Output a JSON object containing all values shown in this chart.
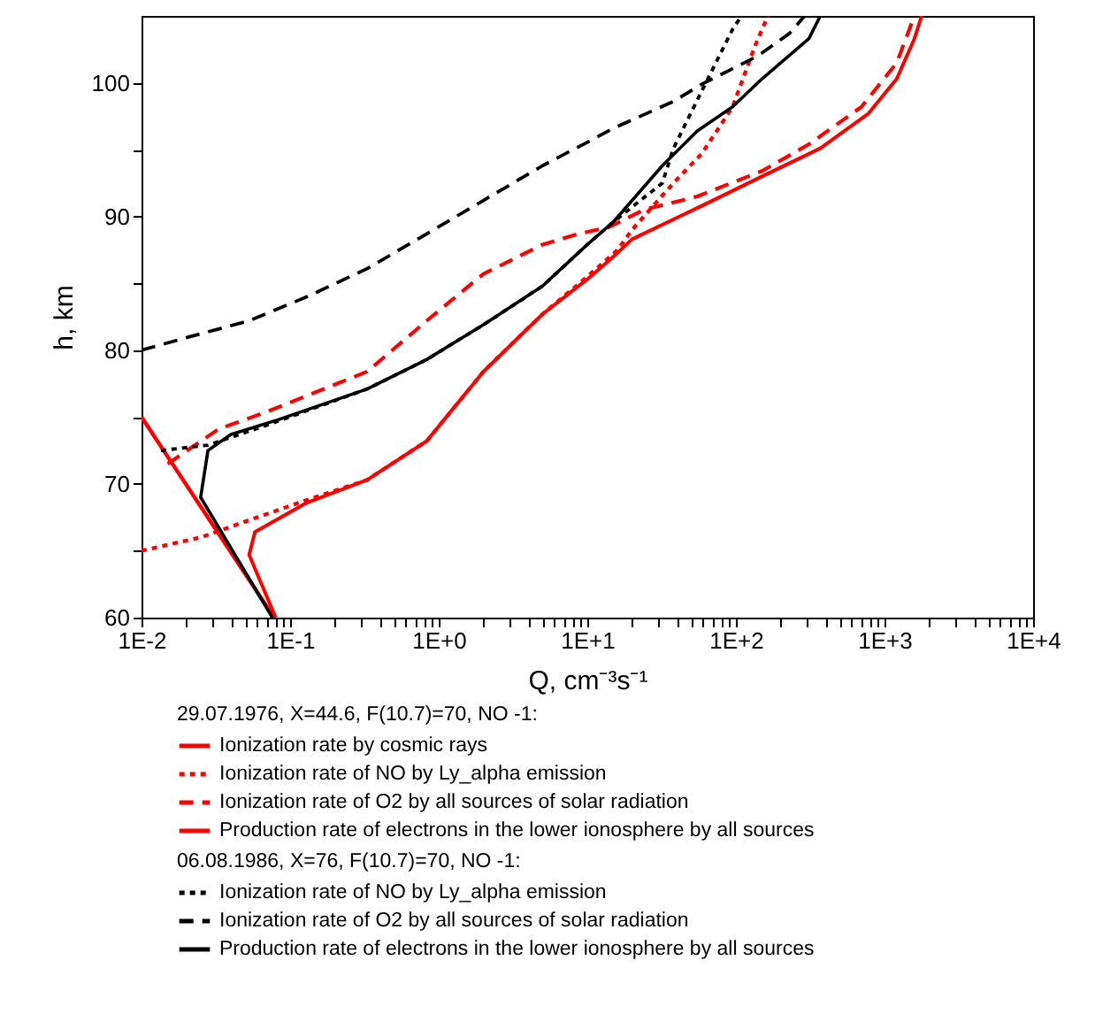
{
  "chart_data": {
    "type": "line",
    "xlabel": "Q, cm⁻³s⁻¹",
    "ylabel": "h, km",
    "log": "x",
    "grid": false,
    "legend": "bottom",
    "marker": "none",
    "xlim": [
      0.01,
      10000
    ],
    "ylim": [
      60,
      105
    ],
    "xticks": [
      {
        "value": 0.01,
        "label": "1E-2"
      },
      {
        "value": 0.02,
        "label": null
      },
      {
        "value": 0.03,
        "label": null
      },
      {
        "value": 0.04,
        "label": null
      },
      {
        "value": 0.05,
        "label": null
      },
      {
        "value": 0.06,
        "label": null
      },
      {
        "value": 0.07,
        "label": null
      },
      {
        "value": 0.08,
        "label": null
      },
      {
        "value": 0.09,
        "label": null
      },
      {
        "value": 0.1,
        "label": "1E-1"
      },
      {
        "value": 0.2,
        "label": null
      },
      {
        "value": 0.3,
        "label": null
      },
      {
        "value": 0.4,
        "label": null
      },
      {
        "value": 0.5,
        "label": null
      },
      {
        "value": 0.6,
        "label": null
      },
      {
        "value": 0.7,
        "label": null
      },
      {
        "value": 0.8,
        "label": null
      },
      {
        "value": 0.9,
        "label": null
      },
      {
        "value": 1,
        "label": "1E+0"
      },
      {
        "value": 2,
        "label": null
      },
      {
        "value": 3,
        "label": null
      },
      {
        "value": 4,
        "label": null
      },
      {
        "value": 5,
        "label": null
      },
      {
        "value": 6,
        "label": null
      },
      {
        "value": 7,
        "label": null
      },
      {
        "value": 8,
        "label": null
      },
      {
        "value": 9,
        "label": null
      },
      {
        "value": 10,
        "label": "1E+1"
      },
      {
        "value": 20,
        "label": null
      },
      {
        "value": 30,
        "label": null
      },
      {
        "value": 40,
        "label": null
      },
      {
        "value": 50,
        "label": null
      },
      {
        "value": 60,
        "label": null
      },
      {
        "value": 70,
        "label": null
      },
      {
        "value": 80,
        "label": null
      },
      {
        "value": 90,
        "label": null
      },
      {
        "value": 100,
        "label": "1E+2"
      },
      {
        "value": 200,
        "label": null
      },
      {
        "value": 300,
        "label": null
      },
      {
        "value": 400,
        "label": null
      },
      {
        "value": 500,
        "label": null
      },
      {
        "value": 600,
        "label": null
      },
      {
        "value": 700,
        "label": null
      },
      {
        "value": 800,
        "label": null
      },
      {
        "value": 900,
        "label": null
      },
      {
        "value": 1000,
        "label": "1E+3"
      },
      {
        "value": 2000,
        "label": null
      },
      {
        "value": 3000,
        "label": null
      },
      {
        "value": 4000,
        "label": null
      },
      {
        "value": 5000,
        "label": null
      },
      {
        "value": 6000,
        "label": null
      },
      {
        "value": 7000,
        "label": null
      },
      {
        "value": 8000,
        "label": null
      },
      {
        "value": 9000,
        "label": null
      },
      {
        "value": 10000,
        "label": "1E+4"
      }
    ],
    "yticks": [
      60,
      {
        "value": 65,
        "label": null
      },
      70,
      {
        "value": 75,
        "label": null
      },
      80,
      {
        "value": 85,
        "label": null
      },
      90,
      {
        "value": 95,
        "label": null
      },
      100
    ],
    "annotations": [
      "29.07.1976, X=44.6,  F(10.7)=70, NO -1:",
      "06.08.1986, X=76,  F(10.7)=70, NO -1:"
    ],
    "series": [
      {
        "name": "Ionization rate by cosmic rays",
        "color": "#ff0000",
        "line_style": "solid",
        "x": [
          0.01,
          0.078
        ],
        "values": [
          75,
          60
        ]
      },
      {
        "name": "Ionization rate of NO by Ly_alpha emission",
        "color": "#ff0000",
        "line_style": "dotted",
        "x": [
          0.01,
          0.025,
          0.06,
          0.13,
          0.33,
          0.83,
          2.0,
          5.0,
          10,
          16,
          20,
          38,
          59,
          95,
          135,
          164
        ],
        "values": [
          65,
          66,
          67.5,
          68.8,
          70.3,
          73.2,
          78.4,
          82.7,
          85.5,
          87.5,
          89,
          92.5,
          94.7,
          98.2,
          102.8,
          105
        ]
      },
      {
        "name": "Ionization rate of O2  by all sources of solar radiation",
        "color": "#ff0000",
        "line_style": "dashed",
        "x": [
          0.015,
          0.033,
          0.07,
          0.33,
          0.83,
          2.0,
          5.0,
          8.7,
          14,
          24,
          55,
          150,
          310,
          700,
          1210,
          1590
        ],
        "values": [
          71.5,
          74.1,
          75.4,
          78.4,
          82.2,
          85.7,
          87.9,
          88.7,
          89.2,
          90.5,
          91.5,
          93.4,
          95.4,
          98.2,
          101.5,
          105
        ]
      },
      {
        "name": "Production rate of electrons in the lower ionosphere by all sources",
        "color": "#ff0000",
        "line_style": "solid",
        "x": [
          0.08,
          0.053,
          0.058,
          0.13,
          0.33,
          0.83,
          2.0,
          5.0,
          10,
          15,
          20,
          59,
          150,
          370,
          780,
          1210,
          1590,
          1780
        ],
        "values": [
          60,
          64.7,
          66.4,
          68.6,
          70.3,
          73.2,
          78.4,
          82.7,
          85.3,
          87,
          88.3,
          90.8,
          93,
          95.1,
          97.7,
          100.3,
          103.3,
          105
        ]
      },
      {
        "name": "Ionization rate of NO by Ly_alpha emission",
        "color": "#000000",
        "line_style": "dotted",
        "x": [
          0.0135,
          0.028,
          0.07,
          0.33,
          0.83,
          2.0,
          5.0,
          10,
          15,
          32,
          38,
          59,
          95,
          109
        ],
        "values": [
          72.5,
          72.9,
          74.4,
          77.1,
          79.3,
          81.9,
          84.8,
          87.9,
          89.6,
          92.5,
          95.1,
          99.4,
          104,
          105
        ]
      },
      {
        "name": "Ionization rate of O2 by all sources of solar radiation",
        "color": "#000000",
        "line_style": "dashed",
        "x": [
          0.01,
          0.021,
          0.053,
          0.13,
          0.33,
          0.83,
          2.0,
          5.0,
          9.8,
          15,
          38,
          59,
          140,
          230,
          290
        ],
        "values": [
          80,
          81,
          82.2,
          84,
          86.1,
          88.7,
          91.2,
          93.8,
          95.5,
          96.6,
          98.6,
          99.9,
          102,
          103.7,
          105
        ]
      },
      {
        "name": "Production rate of electrons in the lower ionosphere by all sources",
        "color": "#000000",
        "line_style": "solid",
        "x": [
          0.076,
          0.025,
          0.028,
          0.04,
          0.083,
          0.33,
          0.83,
          2.0,
          5.0,
          10,
          15,
          32,
          55,
          95,
          150,
          310,
          370
        ],
        "values": [
          60,
          69,
          72.5,
          73.7,
          74.8,
          77.1,
          79.3,
          81.9,
          84.8,
          87.9,
          89.6,
          93.8,
          96.4,
          98.2,
          100.3,
          103.3,
          105
        ]
      }
    ]
  }
}
